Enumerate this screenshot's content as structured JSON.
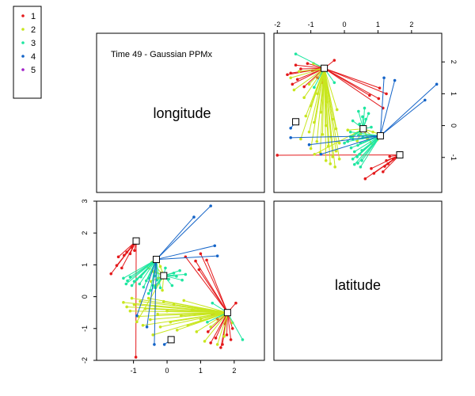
{
  "chart_data": {
    "type": "scatter",
    "title": "Time 49 - Gaussian PPMx",
    "variables": [
      "longitude",
      "latitude"
    ],
    "axes": {
      "longitude": {
        "range": [
          -2.1,
          2.9
        ],
        "ticks": [
          "-2",
          "-1",
          "0",
          "1",
          "2"
        ],
        "tick_values": [
          -2,
          -1,
          0,
          1,
          2
        ]
      },
      "latitude": {
        "range": [
          -2.0,
          3.0
        ],
        "ticks": [
          "-2",
          "-1",
          "0",
          "1",
          "2",
          "3"
        ],
        "tick_values": [
          -2,
          -1,
          0,
          1,
          2,
          3
        ]
      }
    },
    "legend": {
      "placement": "top-left",
      "entries": [
        {
          "label": "1",
          "color": "#E41A1C"
        },
        {
          "label": "2",
          "color": "#C8E61E"
        },
        {
          "label": "3",
          "color": "#1EE6A0"
        },
        {
          "label": "4",
          "color": "#1464C8"
        },
        {
          "label": "5",
          "color": "#A01EC8"
        }
      ]
    },
    "centers": [
      {
        "cluster": "1",
        "longitude": -0.92,
        "latitude": 1.75
      },
      {
        "cluster": "1",
        "longitude": 1.8,
        "latitude": -0.5
      },
      {
        "cluster": "2",
        "longitude": -0.1,
        "latitude": 0.66
      },
      {
        "cluster": "3",
        "longitude": -0.32,
        "latitude": 1.17
      },
      {
        "cluster": "4",
        "longitude": 0.12,
        "latitude": -1.35
      }
    ],
    "clusters": [
      {
        "name": "1",
        "color": "#E41A1C",
        "points": [
          {
            "center": 0,
            "pts": [
              [
                -1.67,
                0.72
              ],
              [
                -1.5,
                0.98
              ],
              [
                -1.45,
                1.25
              ],
              [
                -1.35,
                0.9
              ],
              [
                -1.28,
                1.3
              ],
              [
                -1.2,
                1.4
              ],
              [
                -1.1,
                1.35
              ],
              [
                -0.97,
                1.45
              ],
              [
                -1.05,
                1.55
              ],
              [
                -0.93,
                -1.9
              ]
            ]
          },
          {
            "center": 1,
            "pts": [
              [
                0.55,
                1.25
              ],
              [
                0.85,
                1.12
              ],
              [
                0.95,
                0.85
              ],
              [
                1.0,
                1.35
              ],
              [
                1.18,
                1.15
              ],
              [
                1.22,
                -1.1
              ],
              [
                1.3,
                -1.45
              ],
              [
                1.45,
                -1.3
              ],
              [
                1.5,
                -0.7
              ],
              [
                1.65,
                -1.5
              ],
              [
                1.72,
                -0.85
              ],
              [
                1.78,
                -1.2
              ],
              [
                1.95,
                -1.0
              ],
              [
                1.9,
                -1.35
              ],
              [
                2.05,
                -0.2
              ],
              [
                1.6,
                -1.6
              ],
              [
                1.35,
                -0.55
              ]
            ]
          }
        ]
      },
      {
        "name": "2",
        "color": "#C8E61E",
        "points": [
          {
            "center": 2,
            "pts": [
              [
                -0.9,
                -0.79
              ],
              [
                -0.56,
                0.9
              ],
              [
                -0.48,
                0.48
              ],
              [
                -0.45,
                1.08
              ],
              [
                -0.4,
                0.78
              ],
              [
                -0.35,
                0.35
              ],
              [
                -0.3,
                1.23
              ],
              [
                -0.26,
                0.58
              ],
              [
                -0.2,
                0.95
              ],
              [
                -0.14,
                0.2
              ]
            ]
          },
          {
            "center": 1,
            "pts": [
              [
                -1.3,
                -0.18
              ],
              [
                -1.2,
                -0.32
              ],
              [
                -1.1,
                -0.45
              ],
              [
                -1.05,
                -0.05
              ],
              [
                -0.98,
                -0.25
              ],
              [
                -0.85,
                -0.62
              ],
              [
                -0.8,
                -0.15
              ],
              [
                -0.72,
                -0.9
              ],
              [
                -0.65,
                -0.38
              ],
              [
                -0.55,
                -0.05
              ],
              [
                -0.5,
                -0.72
              ],
              [
                -0.42,
                -1.2
              ],
              [
                -0.35,
                -0.3
              ],
              [
                -0.28,
                -0.55
              ],
              [
                -0.2,
                -0.95
              ],
              [
                -0.1,
                -0.15
              ],
              [
                0.0,
                -0.45
              ],
              [
                0.1,
                -0.8
              ],
              [
                0.2,
                -0.25
              ],
              [
                0.3,
                -1.05
              ],
              [
                0.42,
                -0.6
              ],
              [
                0.5,
                -0.12
              ],
              [
                0.62,
                -0.9
              ],
              [
                0.75,
                -0.42
              ],
              [
                0.88,
                -1.1
              ],
              [
                1.0,
                -0.7
              ],
              [
                1.12,
                -1.4
              ],
              [
                1.3,
                -0.95
              ],
              [
                1.5,
                -1.5
              ],
              [
                1.7,
                -1.25
              ],
              [
                1.95,
                -0.82
              ]
            ]
          }
        ]
      },
      {
        "name": "3",
        "color": "#1EE6A0",
        "points": [
          {
            "center": 2,
            "pts": [
              [
                -0.55,
                0.1
              ],
              [
                -0.35,
                0.28
              ],
              [
                -0.05,
                0.9
              ],
              [
                0.05,
                0.55
              ],
              [
                0.15,
                0.35
              ],
              [
                0.2,
                0.74
              ],
              [
                0.28,
                0.64
              ],
              [
                0.38,
                0.82
              ],
              [
                0.45,
                0.52
              ],
              [
                0.55,
                0.7
              ]
            ]
          },
          {
            "center": 3,
            "pts": [
              [
                -1.3,
                0.58
              ],
              [
                -1.22,
                0.4
              ],
              [
                -1.18,
                0.5
              ],
              [
                -1.1,
                0.62
              ],
              [
                -1.05,
                0.35
              ],
              [
                -0.98,
                0.48
              ],
              [
                -0.9,
                0.55
              ],
              [
                -0.82,
                0.4
              ],
              [
                -0.78,
                0.62
              ],
              [
                -0.7,
                0.3
              ],
              [
                -0.62,
                0.5
              ],
              [
                -0.55,
                0.58
              ],
              [
                -0.5,
                0.2
              ],
              [
                -0.42,
                0.35
              ],
              [
                -0.38,
                0.65
              ],
              [
                -0.3,
                0.52
              ],
              [
                -0.2,
                0.28
              ]
            ]
          },
          {
            "center": 1,
            "pts": [
              [
                1.35,
                -0.2
              ],
              [
                2.25,
                -1.35
              ],
              [
                1.2,
                -0.8
              ]
            ]
          }
        ]
      },
      {
        "name": "4",
        "color": "#1464C8",
        "points": [
          {
            "center": 3,
            "pts": [
              [
                -0.38,
                -1.5
              ],
              [
                -0.9,
                -0.6
              ],
              [
                -0.6,
                -0.95
              ],
              [
                0.8,
                2.5
              ],
              [
                1.3,
                2.85
              ],
              [
                1.42,
                1.6
              ],
              [
                1.5,
                1.28
              ]
            ]
          },
          {
            "center": 4,
            "pts": [
              [
                -0.08,
                -1.5
              ]
            ]
          }
        ]
      }
    ]
  }
}
